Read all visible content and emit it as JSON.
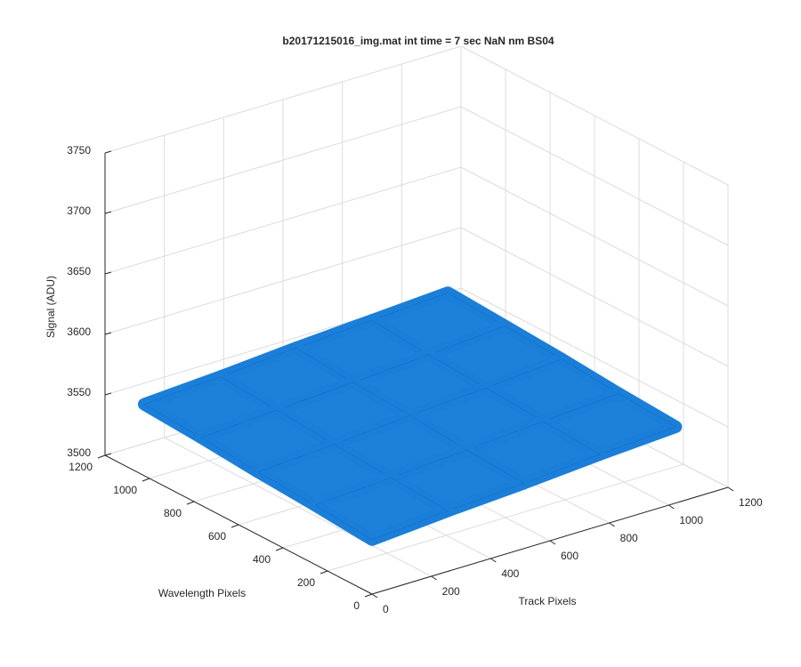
{
  "chart_data": {
    "type": "surface",
    "title": "b20171215016_img.mat int time = 7 sec  NaN nm BS04",
    "xlabel": "Track Pixels",
    "ylabel": "Wavelength Pixels",
    "zlabel": "Signal (ADU)",
    "x": [
      0,
      256,
      512,
      768,
      1024
    ],
    "y": [
      0,
      256,
      512,
      768,
      1024
    ],
    "z": [
      [
        3545,
        3550,
        3554,
        3559,
        3563
      ],
      [
        3549,
        3553,
        3557,
        3562,
        3566
      ],
      [
        3552,
        3556,
        3561,
        3565,
        3570
      ],
      [
        3556,
        3560,
        3564,
        3568,
        3573
      ],
      [
        3559,
        3563,
        3568,
        3572,
        3576
      ]
    ],
    "color": "#1a7fd9",
    "xlim": [
      0,
      1200
    ],
    "xticks": [
      0,
      200,
      400,
      600,
      800,
      1000,
      1200
    ],
    "ylim": [
      0,
      1200
    ],
    "yticks": [
      0,
      200,
      400,
      600,
      800,
      1000,
      1200
    ],
    "zlim": [
      3500,
      3750
    ],
    "zticks": [
      3500,
      3550,
      3600,
      3650,
      3700,
      3750
    ],
    "grid": true
  }
}
